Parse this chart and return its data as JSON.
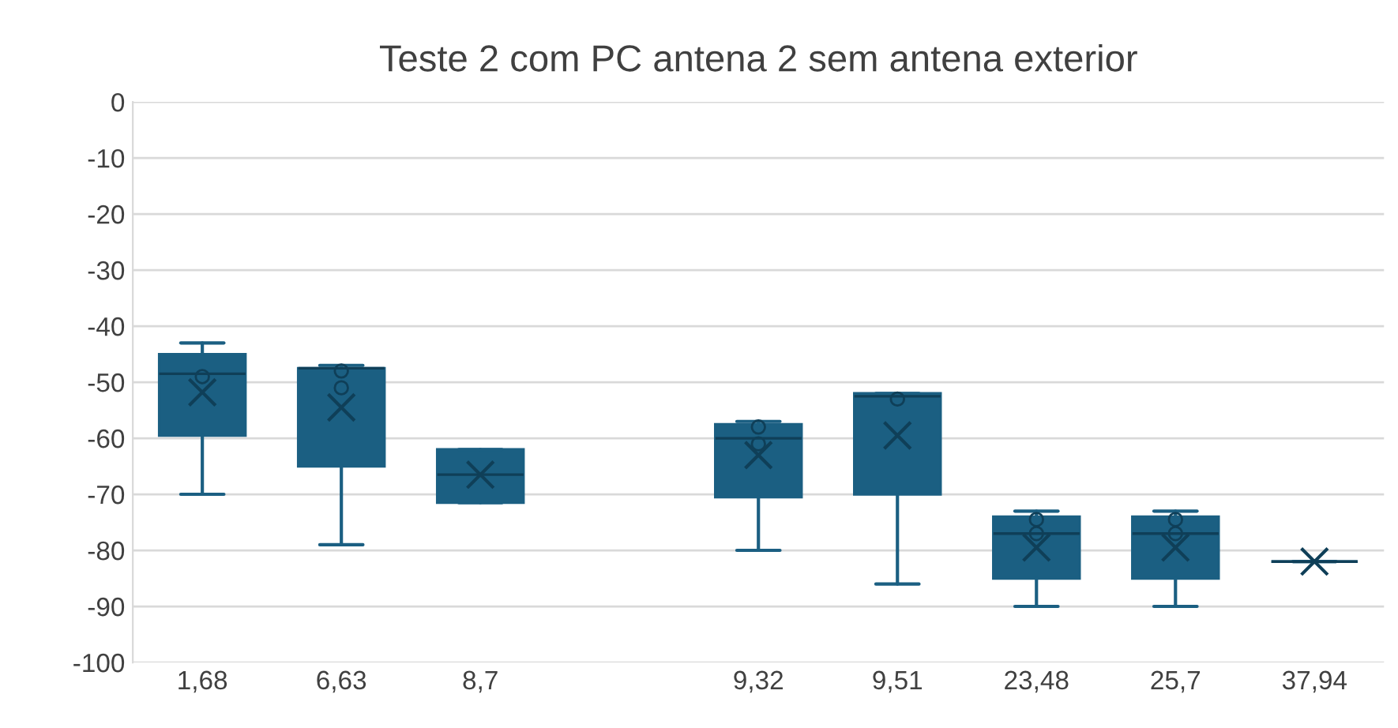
{
  "chart_data": {
    "type": "box",
    "title": "Teste 2 com PC antena 2 sem antena exterior",
    "categories": [
      "1,68",
      "6,63",
      "8,7",
      null,
      "9,32",
      "9,51",
      "23,48",
      "25,7",
      "37,94"
    ],
    "color": "#1b5f82",
    "boxes": [
      {
        "low": -70,
        "q1": -59.5,
        "median": -48.5,
        "q3": -45,
        "high": -43,
        "mean": -51.8,
        "outliers": [
          -49
        ]
      },
      {
        "low": -79,
        "q1": -65,
        "median": -47.5,
        "q3": -47.5,
        "high": -47,
        "mean": -54.5,
        "outliers": [
          -48,
          -51
        ]
      },
      {
        "low": -71.5,
        "q1": -71.5,
        "median": -66.5,
        "q3": -62,
        "high": -62,
        "mean": -66.5
      },
      null,
      {
        "low": -80,
        "q1": -70.5,
        "median": -60,
        "q3": -57.5,
        "high": -57,
        "mean": -63,
        "outliers": [
          -58,
          -61
        ]
      },
      {
        "low": -86,
        "q1": -70,
        "median": -52.5,
        "q3": -52,
        "high": -52,
        "mean": -59.5,
        "outliers": [
          -53
        ]
      },
      {
        "low": -90,
        "q1": -85,
        "median": -77,
        "q3": -74,
        "high": -73,
        "mean": -79.5,
        "outliers": [
          -74.5,
          -77
        ]
      },
      {
        "low": -90,
        "q1": -85,
        "median": -77,
        "q3": -74,
        "high": -73,
        "mean": -79.5,
        "outliers": [
          -74.5,
          -77
        ]
      },
      {
        "low": -82,
        "q1": -82,
        "median": -82,
        "q3": -82,
        "high": -82,
        "mean": -82
      }
    ],
    "ylim": [
      -100,
      0
    ],
    "yticks": [
      -100,
      -90,
      -80,
      -70,
      -60,
      -50,
      -40,
      -30,
      -20,
      -10,
      0
    ],
    "grid": "y"
  }
}
